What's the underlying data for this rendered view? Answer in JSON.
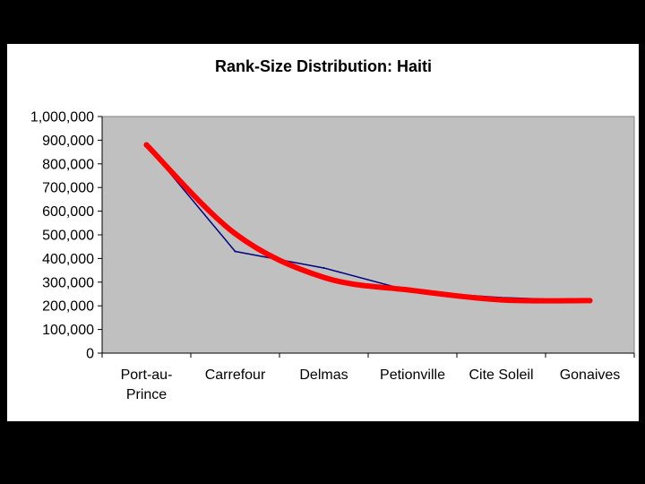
{
  "chart_data": {
    "type": "line",
    "title": "Rank-Size Distribution: Haiti",
    "xlabel": "",
    "ylabel": "",
    "categories": [
      "Port-au-Prince",
      "Carrefour",
      "Delmas",
      "Petionville",
      "Cite Soleil",
      "Gonaives"
    ],
    "category_labels": [
      [
        "Port-au-",
        "Prince"
      ],
      [
        "Carrefour"
      ],
      [
        "Delmas"
      ],
      [
        "Petionville"
      ],
      [
        "Cite Soleil"
      ],
      [
        "Gonaives"
      ]
    ],
    "ylim": [
      0,
      1000000
    ],
    "yticks": [
      0,
      100000,
      200000,
      300000,
      400000,
      500000,
      600000,
      700000,
      800000,
      900000,
      1000000
    ],
    "ytick_labels": [
      "0",
      "100,000",
      "200,000",
      "300,000",
      "400,000",
      "500,000",
      "600,000",
      "700,000",
      "800,000",
      "900,000",
      "1,000,000"
    ],
    "grid": false,
    "legend": "none",
    "series": [
      {
        "values": [
          880000,
          430000,
          360000,
          260000,
          235000,
          222000
        ],
        "color": "#000080",
        "style": "straight"
      },
      {
        "values": [
          880000,
          505000,
          320000,
          265000,
          225000,
          222000
        ],
        "color": "#ff0000",
        "style": "smoothed"
      }
    ],
    "plot_background": "#c0c0c0"
  }
}
